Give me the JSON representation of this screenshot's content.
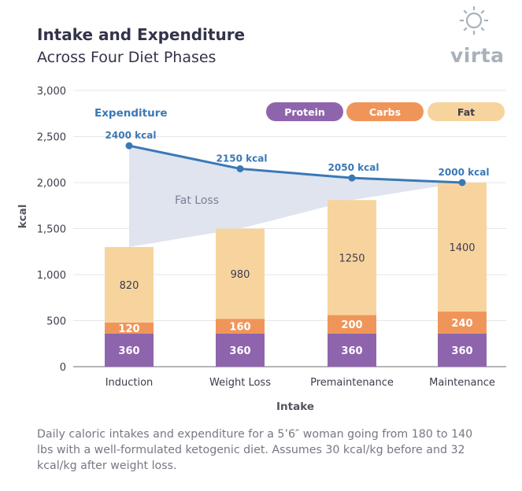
{
  "header": {
    "title": "Intake and Expenditure",
    "subtitle": "Across Four Diet Phases"
  },
  "logo": {
    "text": "virta",
    "icon": "sun-outline-icon"
  },
  "caption": "Daily caloric intakes and expenditure for a 5’6″ woman going from 180 to 140 lbs with a well-formulated ketogenic diet. Assumes 30 kcal/kg before and 32 kcal/kg after weight loss.",
  "chart_data": {
    "type": "bar",
    "stacked": true,
    "categories": [
      "Induction",
      "Weight Loss",
      "Premaintenance",
      "Maintenance"
    ],
    "series": [
      {
        "name": "Protein",
        "values": [
          360,
          360,
          360,
          360
        ],
        "color": "#8e65ad"
      },
      {
        "name": "Carbs",
        "values": [
          120,
          160,
          200,
          240
        ],
        "color": "#f0955a"
      },
      {
        "name": "Fat",
        "values": [
          820,
          980,
          1250,
          1400
        ],
        "color": "#f7d49e"
      }
    ],
    "line": {
      "name": "Expenditure",
      "values": [
        2400,
        2150,
        2050,
        2000
      ],
      "labels": [
        "2400 kcal",
        "2150 kcal",
        "2050 kcal",
        "2000 kcal"
      ],
      "color": "#3a78b5"
    },
    "area_label": "Fat Loss",
    "area_color": "#dfe4ef",
    "xlabel": "Intake",
    "ylabel": "kcal",
    "ylim": [
      0,
      3000
    ],
    "yticks": [
      0,
      500,
      1000,
      1500,
      2000,
      2500,
      3000
    ],
    "ytick_labels": [
      "0",
      "500",
      "1,000",
      "1,500",
      "2,000",
      "2,500",
      "3,000"
    ],
    "grid": true,
    "legend_position": "top-right"
  }
}
